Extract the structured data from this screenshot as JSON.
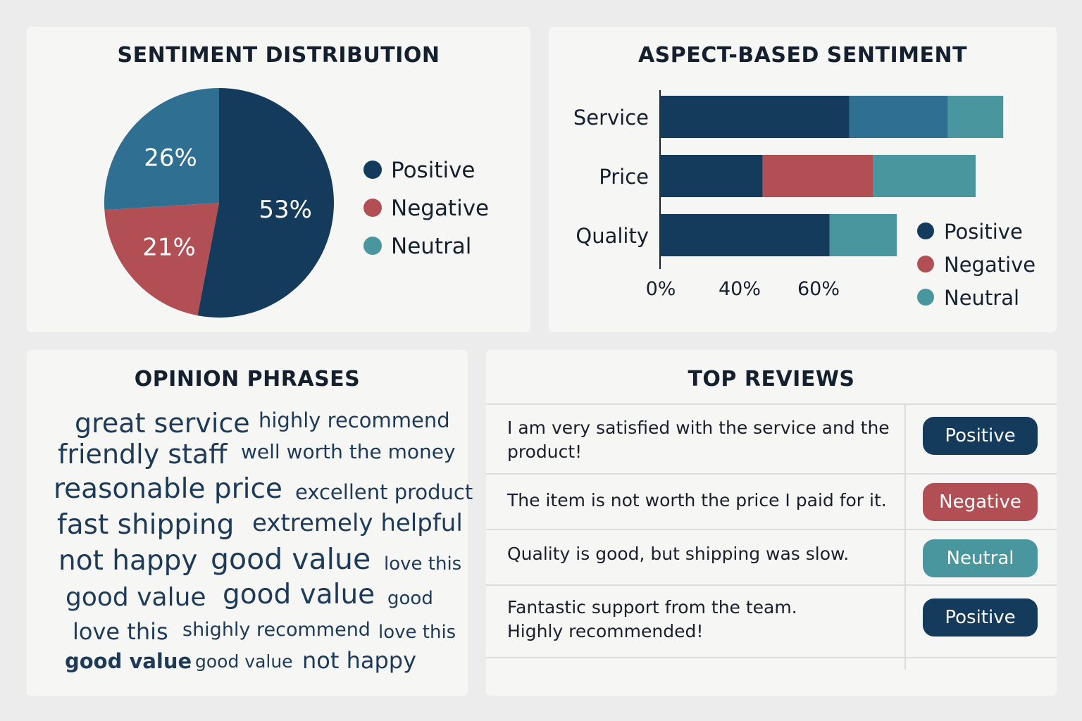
{
  "colors": {
    "positive": "#143a5c",
    "negative": "#b24f55",
    "neutral_pie": "#2f6f91",
    "neutral": "#4a969f",
    "mid_blue": "#2f6f91"
  },
  "sentiment_card": {
    "title": "SENTIMENT DISTRIBUTION"
  },
  "aspect_card": {
    "title": "ASPECT-BASED SENTIMENT"
  },
  "phrases_card": {
    "title": "OPINION PHRASES",
    "phrases": [
      "great service",
      "highly recommend",
      "friendly staff",
      "well worth the money",
      "reasonable price",
      "excellent product",
      "fast shipping",
      "extremely helpful",
      "not happy",
      "good value",
      "love this",
      "good value",
      "good value",
      "good",
      "love this",
      "shighly recommend",
      "love this",
      "good value",
      "good value",
      "not happy"
    ]
  },
  "reviews_card": {
    "title": "TOP REVIEWS",
    "rows": [
      {
        "text": "I am very satisfied with the service and the product!",
        "sentiment": "Positive"
      },
      {
        "text": "The item is not worth the price I paid for it.",
        "sentiment": "Negative"
      },
      {
        "text": "Quality is good, but shipping was slow.",
        "sentiment": "Neutral"
      },
      {
        "text": "Fantastic support from the team. Highly recommended!",
        "sentiment": "Positive"
      }
    ]
  },
  "chart_data": [
    {
      "type": "pie",
      "title": "SENTIMENT DISTRIBUTION",
      "slices": [
        {
          "label": "Positive",
          "value": 53,
          "display": "53%"
        },
        {
          "label": "Negative",
          "value": 21,
          "display": "21%"
        },
        {
          "label": "Neutral",
          "value": 26,
          "display": "26%"
        }
      ],
      "legend": [
        "Positive",
        "Negative",
        "Neutral"
      ],
      "legend_position": "right"
    },
    {
      "type": "bar",
      "orientation": "horizontal",
      "stacked": true,
      "title": "ASPECT-BASED SENTIMENT",
      "categories": [
        "Service",
        "Price",
        "Quality"
      ],
      "series": [
        {
          "name": "Positive",
          "values": [
            48,
            26,
            43
          ]
        },
        {
          "name": "Negative",
          "values": [
            0,
            28,
            0
          ]
        },
        {
          "name": "",
          "values": [
            25,
            0,
            0
          ]
        },
        {
          "name": "Neutral",
          "values": [
            14,
            26,
            17
          ]
        }
      ],
      "x_ticks": [
        "0%",
        "40%",
        "60%"
      ],
      "legend": [
        "Positive",
        "Negative",
        "Neutral"
      ],
      "legend_position": "bottom-right"
    }
  ]
}
